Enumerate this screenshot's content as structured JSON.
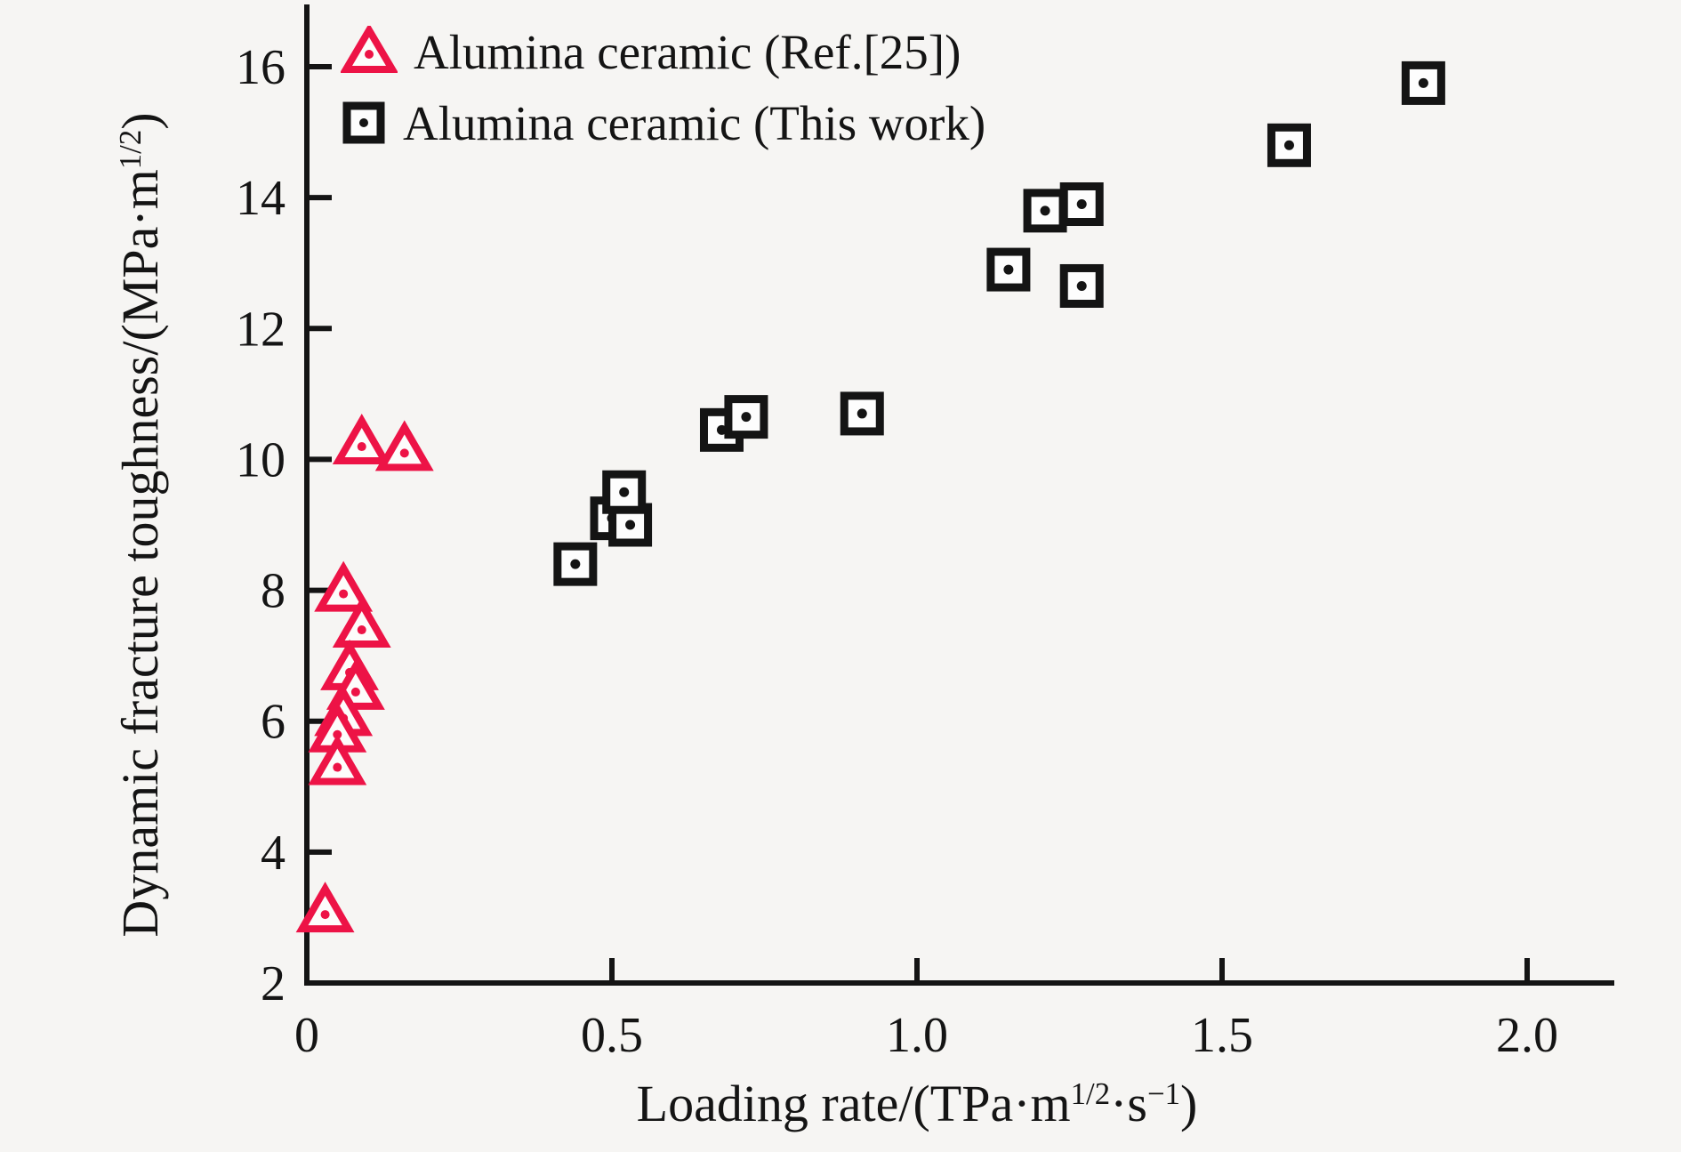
{
  "figure": {
    "background": "#f6f5f3",
    "text_color": "#141414",
    "accent_red": "#ed1346"
  },
  "chart_data": {
    "type": "scatter",
    "title": "",
    "xlabel": {
      "pre": "Loading rate/(TPa·m",
      "sup1": "1/2",
      "mid": "·s",
      "sup2": "−1",
      "post": ")"
    },
    "ylabel": {
      "pre": "Dynamic fracture toughness/(MPa·m",
      "sup": "1/2",
      "post": ")"
    },
    "xlim": [
      0,
      2.0
    ],
    "ylim": [
      2,
      16
    ],
    "grid": false,
    "legend_position": "top-left",
    "x_tick_labels": [
      "0",
      "0.5",
      "1.0",
      "1.5",
      "2.0"
    ],
    "x_tick_values": [
      0,
      0.5,
      1.0,
      1.5,
      2.0
    ],
    "y_tick_labels": [
      "2",
      "4",
      "6",
      "8",
      "10",
      "12",
      "14",
      "16"
    ],
    "y_tick_values": [
      2,
      4,
      6,
      8,
      10,
      12,
      14,
      16
    ],
    "series": [
      {
        "name": "Alumina ceramic (Ref.[25])",
        "marker": "triangle",
        "color": "#ed1346",
        "points": [
          [
            0.09,
            10.25
          ],
          [
            0.16,
            10.15
          ],
          [
            0.06,
            8.0
          ],
          [
            0.09,
            7.45
          ],
          [
            0.07,
            6.8
          ],
          [
            0.08,
            6.5
          ],
          [
            0.06,
            6.1
          ],
          [
            0.05,
            5.85
          ],
          [
            0.05,
            5.35
          ],
          [
            0.03,
            3.1
          ]
        ]
      },
      {
        "name": "Alumina ceramic (This work)",
        "marker": "square",
        "color": "#141414",
        "points": [
          [
            0.44,
            8.4
          ],
          [
            0.5,
            9.1
          ],
          [
            0.53,
            9.0
          ],
          [
            0.52,
            9.5
          ],
          [
            0.68,
            10.45
          ],
          [
            0.72,
            10.65
          ],
          [
            0.91,
            10.7
          ],
          [
            1.15,
            12.9
          ],
          [
            1.21,
            13.8
          ],
          [
            1.27,
            13.9
          ],
          [
            1.27,
            12.65
          ],
          [
            1.61,
            14.8
          ],
          [
            1.83,
            15.75
          ]
        ]
      }
    ]
  }
}
